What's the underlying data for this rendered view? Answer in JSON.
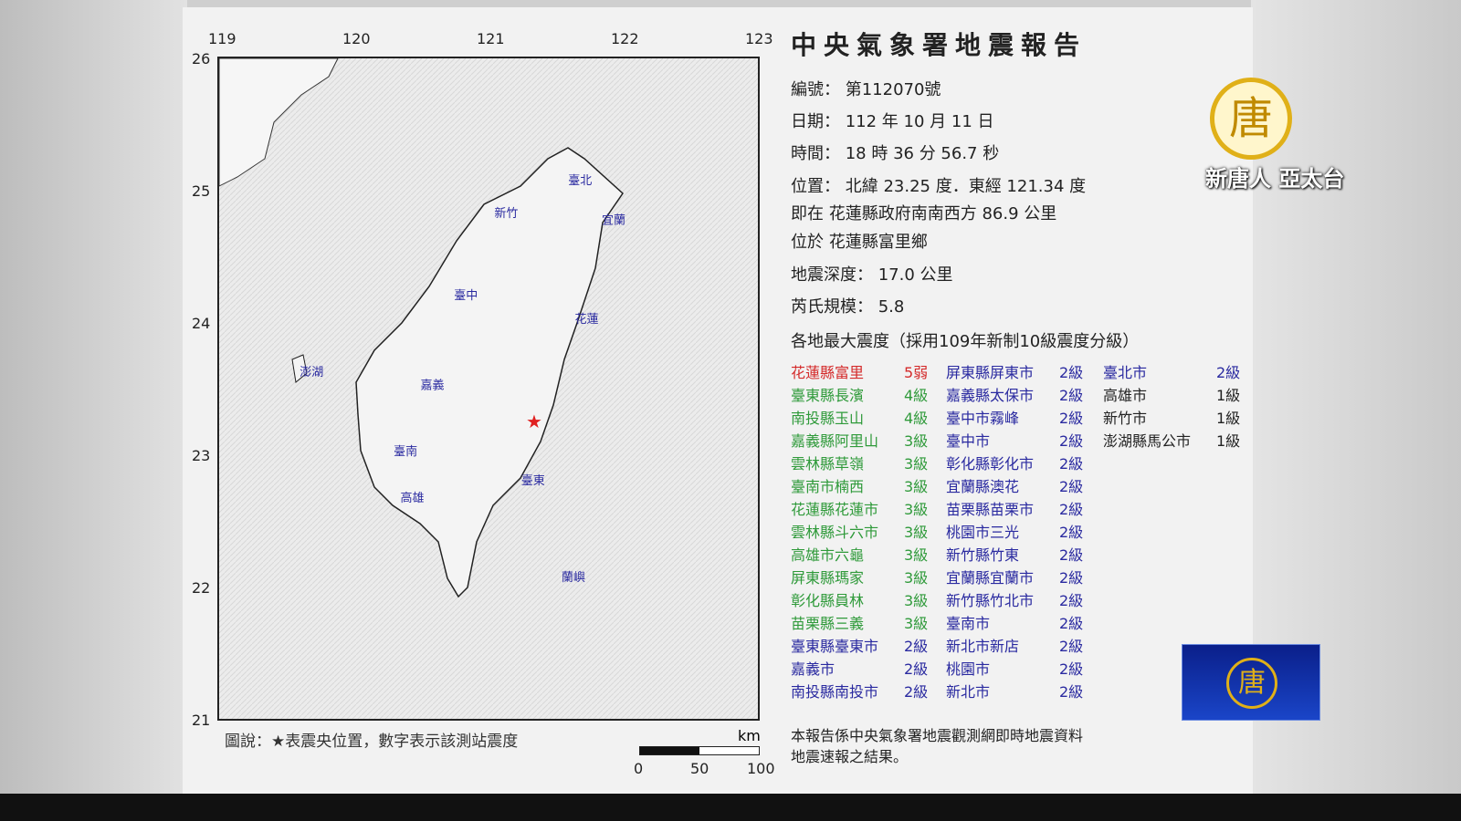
{
  "report": {
    "title": "中央氣象署地震報告",
    "number": "編號： 第112070號",
    "date": "日期： 112 年 10 月 11 日",
    "time": "時間： 18 時 36 分 56.7 秒",
    "location": "位置： 北緯 23.25 度．東經 121.34 度",
    "relative": "即在 花蓮縣政府南南西方 86.9 公里",
    "township": "位於 花蓮縣富里鄉",
    "depth": "地震深度： 17.0 公里",
    "magnitude": "芮氏規模： 5.8",
    "intensity_header": "各地最大震度（採用109年新制10級震度分級）",
    "footer_line1": "本報告係中央氣象署地震觀測網即時地震資料",
    "footer_line2": "地震速報之結果。"
  },
  "intensity_columns": [
    [
      {
        "place": "花蓮縣富里",
        "level": "5弱",
        "color": "red"
      },
      {
        "place": "臺東縣長濱",
        "level": "4級",
        "color": "green"
      },
      {
        "place": "南投縣玉山",
        "level": "4級",
        "color": "green"
      },
      {
        "place": "嘉義縣阿里山",
        "level": "3級",
        "color": "green"
      },
      {
        "place": "雲林縣草嶺",
        "level": "3級",
        "color": "green"
      },
      {
        "place": "臺南市楠西",
        "level": "3級",
        "color": "green"
      },
      {
        "place": "花蓮縣花蓮市",
        "level": "3級",
        "color": "green"
      },
      {
        "place": "雲林縣斗六市",
        "level": "3級",
        "color": "green"
      },
      {
        "place": "高雄市六龜",
        "level": "3級",
        "color": "green"
      },
      {
        "place": "屏東縣瑪家",
        "level": "3級",
        "color": "green"
      },
      {
        "place": "彰化縣員林",
        "level": "3級",
        "color": "green"
      },
      {
        "place": "苗栗縣三義",
        "level": "3級",
        "color": "green"
      },
      {
        "place": "臺東縣臺東市",
        "level": "2級",
        "color": "blue"
      },
      {
        "place": "嘉義市",
        "level": "2級",
        "color": "blue"
      },
      {
        "place": "南投縣南投市",
        "level": "2級",
        "color": "blue"
      }
    ],
    [
      {
        "place": "屏東縣屏東市",
        "level": "2級",
        "color": "blue"
      },
      {
        "place": "嘉義縣太保市",
        "level": "2級",
        "color": "blue"
      },
      {
        "place": "臺中市霧峰",
        "level": "2級",
        "color": "blue"
      },
      {
        "place": "臺中市",
        "level": "2級",
        "color": "blue"
      },
      {
        "place": "彰化縣彰化市",
        "level": "2級",
        "color": "blue"
      },
      {
        "place": "宜蘭縣澳花",
        "level": "2級",
        "color": "blue"
      },
      {
        "place": "苗栗縣苗栗市",
        "level": "2級",
        "color": "blue"
      },
      {
        "place": "桃園市三光",
        "level": "2級",
        "color": "blue"
      },
      {
        "place": "新竹縣竹東",
        "level": "2級",
        "color": "blue"
      },
      {
        "place": "宜蘭縣宜蘭市",
        "level": "2級",
        "color": "blue"
      },
      {
        "place": "新竹縣竹北市",
        "level": "2級",
        "color": "blue"
      },
      {
        "place": "臺南市",
        "level": "2級",
        "color": "blue"
      },
      {
        "place": "新北市新店",
        "level": "2級",
        "color": "blue"
      },
      {
        "place": "桃園市",
        "level": "2級",
        "color": "blue"
      },
      {
        "place": "新北市",
        "level": "2級",
        "color": "blue"
      }
    ],
    [
      {
        "place": "臺北市",
        "level": "2級",
        "color": "blue"
      },
      {
        "place": "高雄市",
        "level": "1級",
        "color": "black"
      },
      {
        "place": "新竹市",
        "level": "1級",
        "color": "black"
      },
      {
        "place": "澎湖縣馬公市",
        "level": "1級",
        "color": "black"
      }
    ]
  ],
  "colors": {
    "red": "#d42a2a",
    "green": "#2f9a3a",
    "blue": "#2a2aa0",
    "black": "#222222"
  },
  "map": {
    "lon_ticks": [
      "119",
      "120",
      "121",
      "122",
      "123"
    ],
    "lat_ticks": [
      "26",
      "25",
      "24",
      "23",
      "22",
      "21"
    ],
    "cities": [
      {
        "name": "臺北",
        "lon": 121.6,
        "lat": 25.05
      },
      {
        "name": "新竹",
        "lon": 121.05,
        "lat": 24.8
      },
      {
        "name": "宜蘭",
        "lon": 121.85,
        "lat": 24.75
      },
      {
        "name": "臺中",
        "lon": 120.75,
        "lat": 24.18
      },
      {
        "name": "花蓮",
        "lon": 121.65,
        "lat": 24.0
      },
      {
        "name": "澎湖",
        "lon": 119.6,
        "lat": 23.6
      },
      {
        "name": "嘉義",
        "lon": 120.5,
        "lat": 23.5
      },
      {
        "name": "臺南",
        "lon": 120.3,
        "lat": 23.0
      },
      {
        "name": "高雄",
        "lon": 120.35,
        "lat": 22.65
      },
      {
        "name": "臺東",
        "lon": 121.25,
        "lat": 22.78
      },
      {
        "name": "蘭嶼",
        "lon": 121.55,
        "lat": 22.05
      }
    ],
    "epicenter": {
      "lon": 121.34,
      "lat": 23.25
    },
    "legend": "圖說：★表震央位置，數字表示該測站震度",
    "scale_unit": "km",
    "scale_labels": [
      "0",
      "50",
      "100"
    ]
  },
  "channel": {
    "logo_char": "唐",
    "logo_text": "新唐人 亞太台"
  }
}
